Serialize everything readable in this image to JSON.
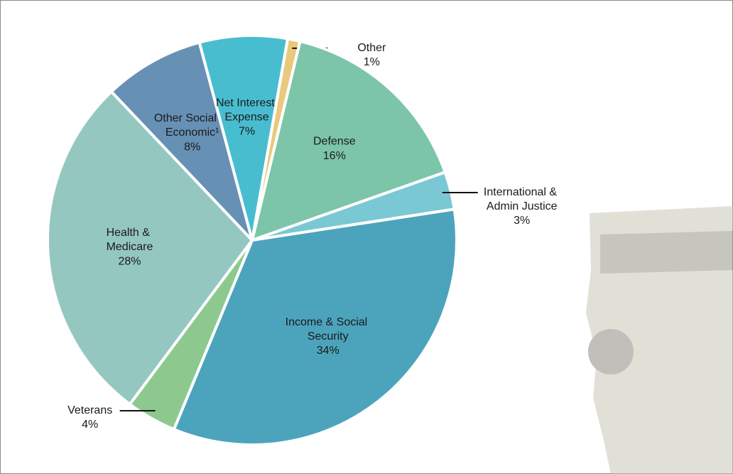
{
  "chart_data": {
    "type": "pie",
    "categories": [
      "Other",
      "Defense",
      "International & Admin Justice",
      "Income & Social Security",
      "Veterans",
      "Health & Medicare",
      "Other Social & Economic¹",
      "Net Interest Expense"
    ],
    "values": [
      1,
      16,
      3,
      34,
      4,
      28,
      8,
      7
    ],
    "value_labels": [
      "1%",
      "16%",
      "3%",
      "34%",
      "4%",
      "28%",
      "8%",
      "7%"
    ],
    "colors": [
      "#e9c97d",
      "#7cc5a9",
      "#7ac8d4",
      "#4ca4bc",
      "#8dc98f",
      "#95c7c1",
      "#6790b5",
      "#49bdd0"
    ]
  }
}
